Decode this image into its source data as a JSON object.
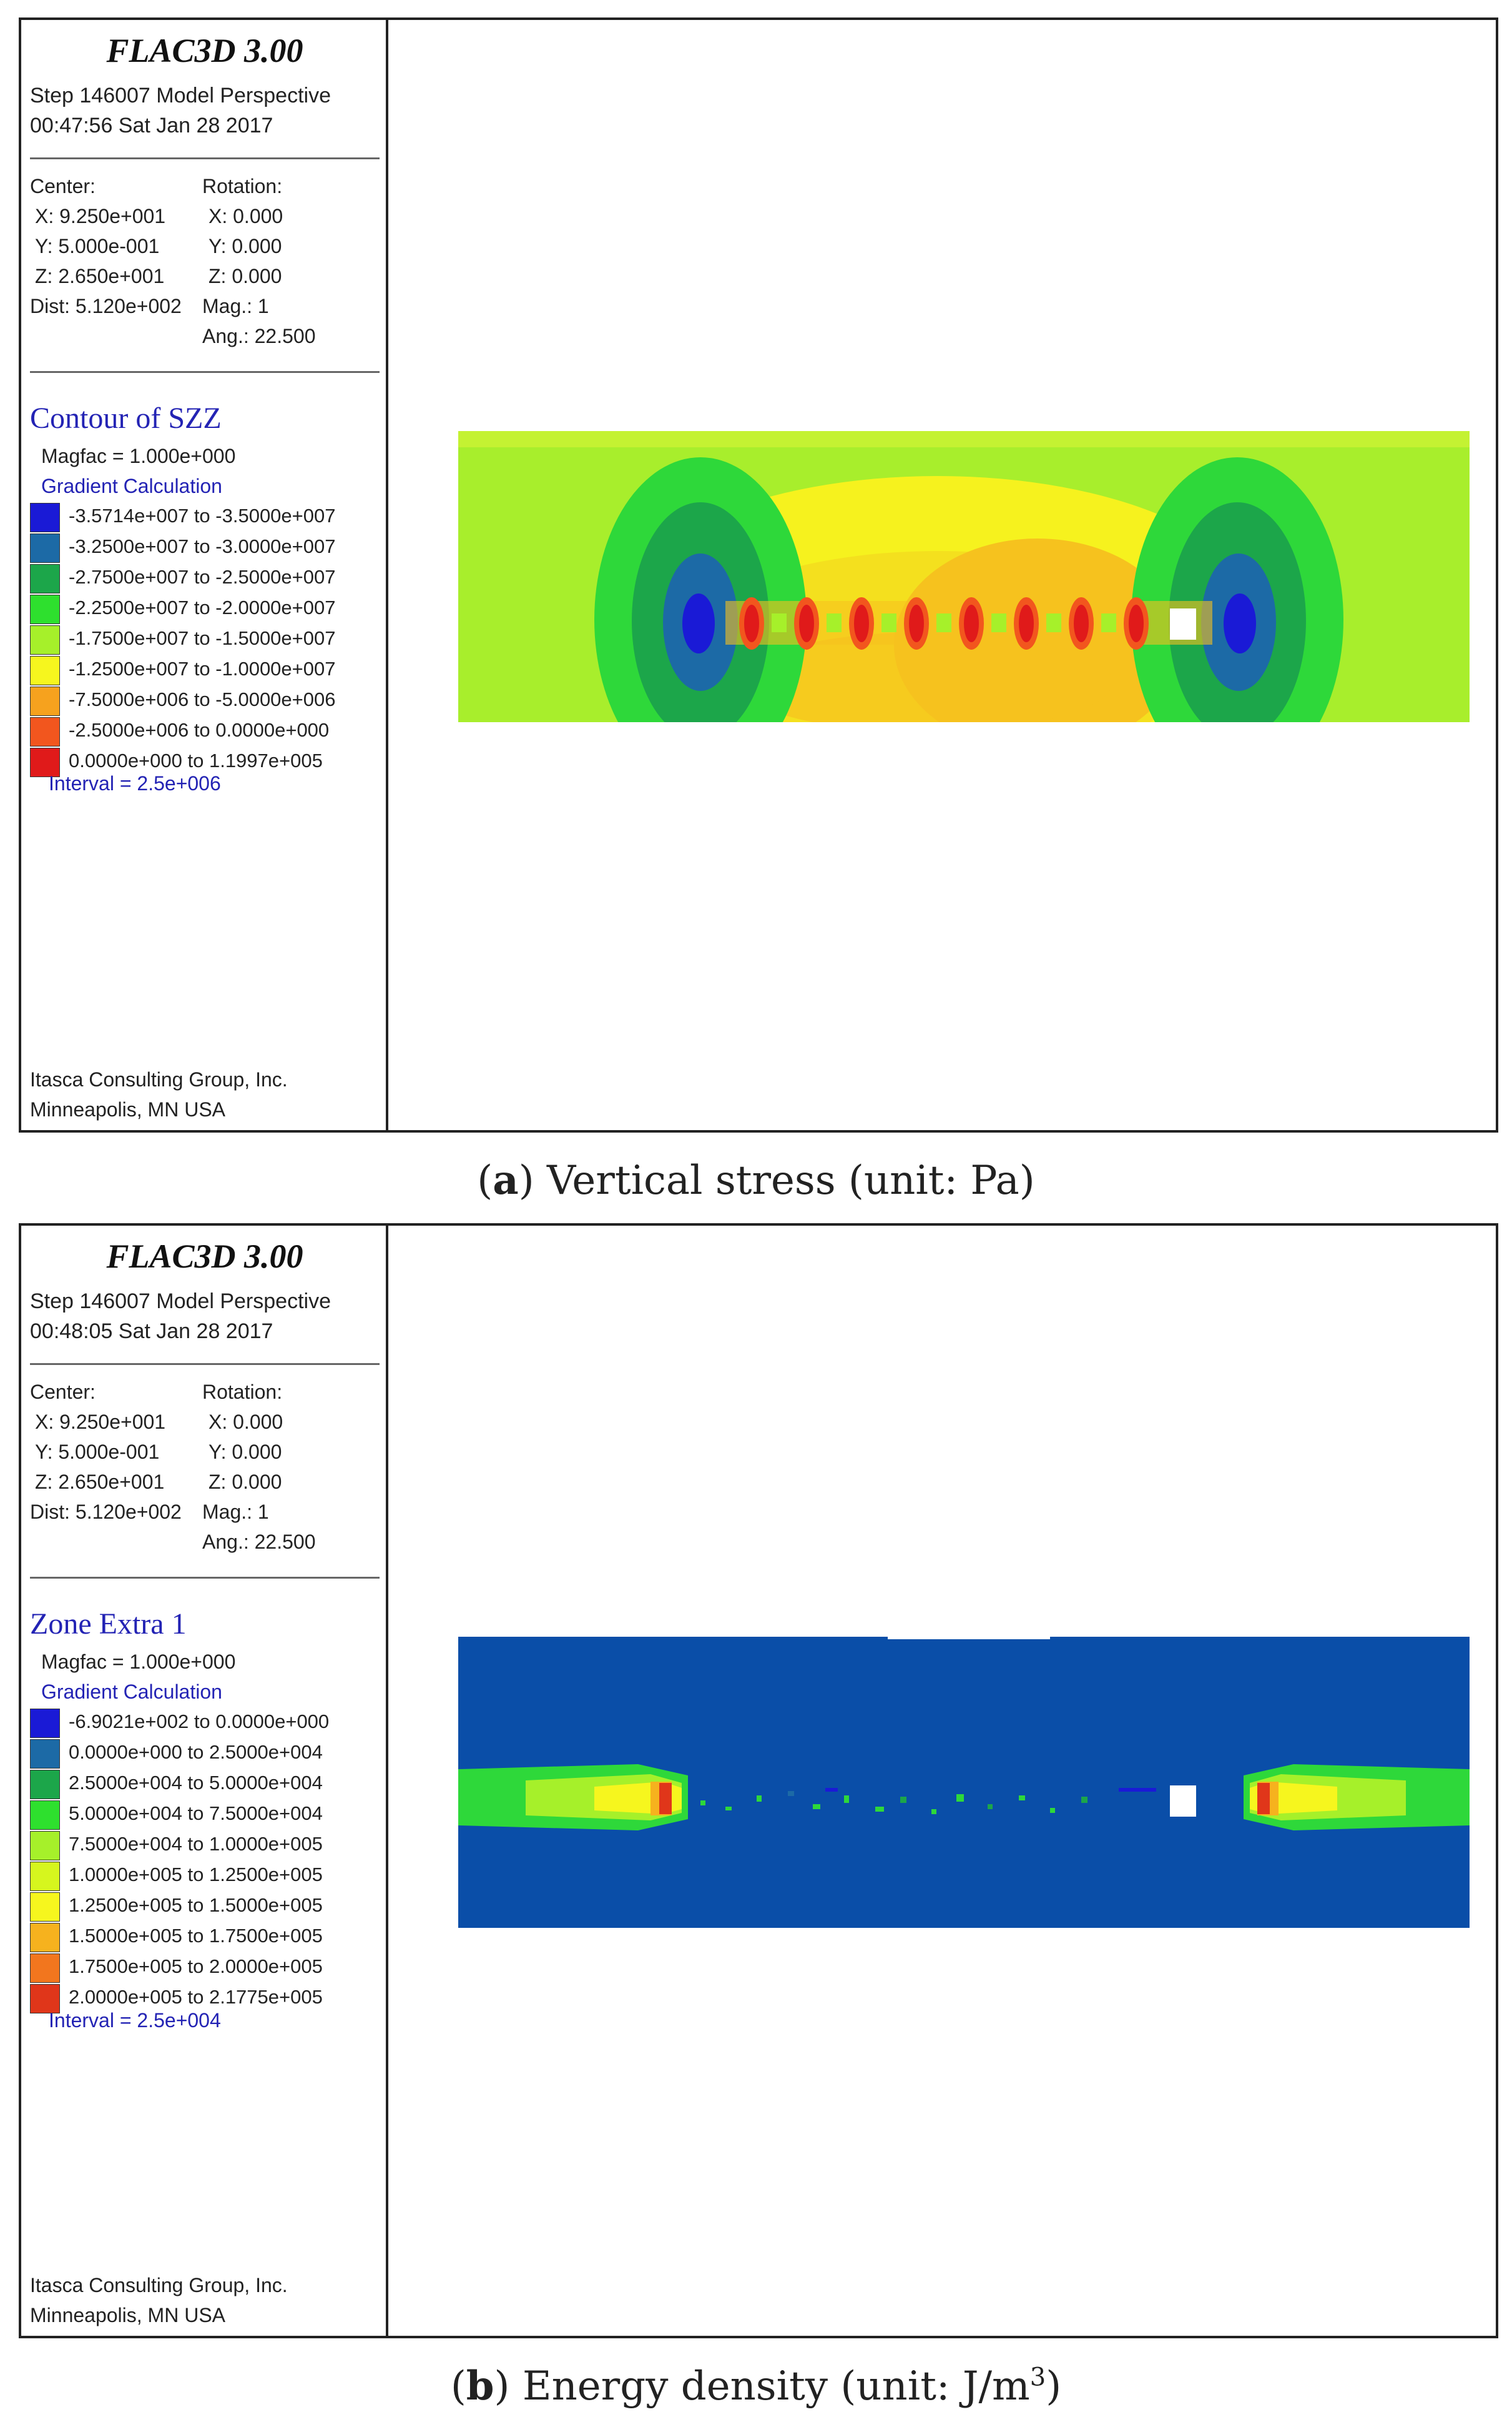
{
  "panels": [
    {
      "app_title": "FLAC3D 3.00",
      "step_line": "Step 146007  Model Perspective",
      "time_line": "00:47:56 Sat Jan 28 2017",
      "center_label": "Center:",
      "center_x": "X: 9.250e+001",
      "center_y": "Y: 5.000e-001",
      "center_z": "Z: 2.650e+001",
      "dist": "Dist: 5.120e+002",
      "rotation_label": "Rotation:",
      "rot_x": "X:   0.000",
      "rot_y": "Y:   0.000",
      "rot_z": "Z:   0.000",
      "mag": "Mag.:        1",
      "ang": "Ang.:  22.500",
      "contour_title": "Contour of SZZ",
      "magfac": "Magfac =  1.000e+000",
      "gradient": "Gradient Calculation",
      "legend": [
        {
          "color": "#1a1ad6",
          "range": "-3.5714e+007 to -3.5000e+007"
        },
        {
          "color": "#1c6aa6",
          "range": "-3.2500e+007 to -3.0000e+007"
        },
        {
          "color": "#1ca64a",
          "range": "-2.7500e+007 to -2.5000e+007"
        },
        {
          "color": "#2ee02e",
          "range": "-2.2500e+007 to -2.0000e+007"
        },
        {
          "color": "#a6f02a",
          "range": "-1.7500e+007 to -1.5000e+007"
        },
        {
          "color": "#f6f61e",
          "range": "-1.2500e+007 to -1.0000e+007"
        },
        {
          "color": "#f6a21e",
          "range": "-7.5000e+006 to -5.0000e+006"
        },
        {
          "color": "#f2561e",
          "range": "-2.5000e+006 to  0.0000e+000"
        },
        {
          "color": "#e01a1a",
          "range": " 0.0000e+000 to  1.1997e+005"
        }
      ],
      "interval": "Interval =  2.5e+006",
      "credit1": "Itasca Consulting Group, Inc.",
      "credit2": "Minneapolis, MN  USA",
      "caption_letter": "a",
      "caption_text": " Vertical stress (unit: Pa)"
    },
    {
      "app_title": "FLAC3D 3.00",
      "step_line": "Step 146007  Model Perspective",
      "time_line": "00:48:05 Sat Jan 28 2017",
      "center_label": "Center:",
      "center_x": "X: 9.250e+001",
      "center_y": "Y: 5.000e-001",
      "center_z": "Z: 2.650e+001",
      "dist": "Dist: 5.120e+002",
      "rotation_label": "Rotation:",
      "rot_x": "X:   0.000",
      "rot_y": "Y:   0.000",
      "rot_z": "Z:   0.000",
      "mag": "Mag.:        1",
      "ang": "Ang.:  22.500",
      "contour_title": "Zone Extra 1",
      "magfac": "Magfac =  1.000e+000",
      "gradient": "Gradient Calculation",
      "legend": [
        {
          "color": "#1a1ad6",
          "range": "-6.9021e+002 to  0.0000e+000"
        },
        {
          "color": "#1c6aa6",
          "range": " 0.0000e+000 to  2.5000e+004"
        },
        {
          "color": "#1ca64a",
          "range": " 2.5000e+004 to  5.0000e+004"
        },
        {
          "color": "#2ee02e",
          "range": " 5.0000e+004 to  7.5000e+004"
        },
        {
          "color": "#a6f02a",
          "range": " 7.5000e+004 to  1.0000e+005"
        },
        {
          "color": "#d6f61e",
          "range": " 1.0000e+005 to  1.2500e+005"
        },
        {
          "color": "#f6f61e",
          "range": " 1.2500e+005 to  1.5000e+005"
        },
        {
          "color": "#f6b21e",
          "range": " 1.5000e+005 to  1.7500e+005"
        },
        {
          "color": "#f2761e",
          "range": " 1.7500e+005 to  2.0000e+005"
        },
        {
          "color": "#e0361a",
          "range": " 2.0000e+005 to  2.1775e+005"
        }
      ],
      "interval": "Interval =  2.5e+004",
      "credit1": "Itasca Consulting Group, Inc.",
      "credit2": "Minneapolis, MN  USA",
      "caption_letter": "b",
      "caption_text_before_sup": " Energy density (unit: J/m",
      "caption_sup": "3",
      "caption_text_after_sup": ")"
    }
  ]
}
